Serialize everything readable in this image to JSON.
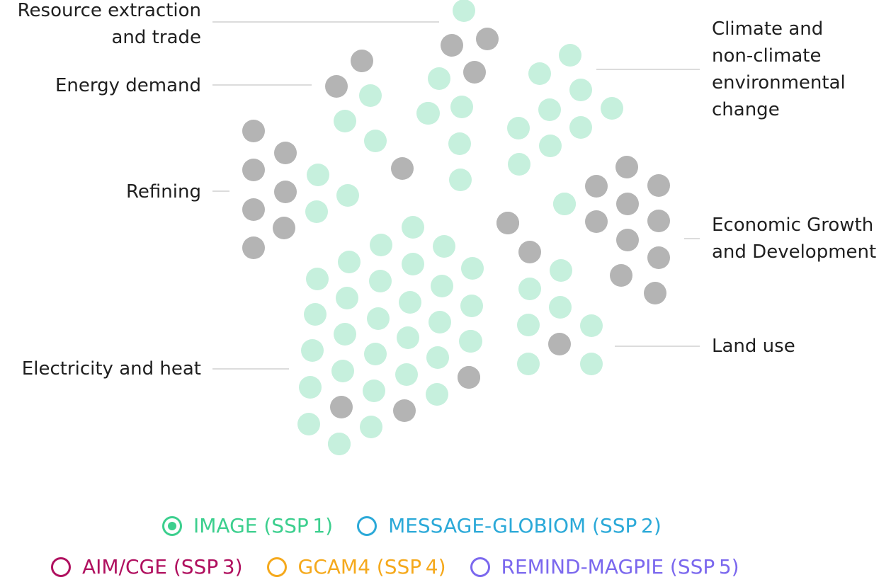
{
  "colors": {
    "active": "#c6f0dd",
    "inactive": "#b4b4b4",
    "connector": "#dcdcdc"
  },
  "sectors": [
    {
      "key": "resource",
      "lines": [
        "Resource extraction",
        "and trade"
      ]
    },
    {
      "key": "energy",
      "lines": [
        "Energy demand"
      ]
    },
    {
      "key": "refining",
      "lines": [
        "Refining"
      ]
    },
    {
      "key": "electricity",
      "lines": [
        "Electricity and heat"
      ]
    },
    {
      "key": "climate",
      "lines": [
        "Climate and",
        "non-climate",
        "environmental",
        "change"
      ]
    },
    {
      "key": "economic",
      "lines": [
        "Economic Growth",
        "and Development"
      ]
    },
    {
      "key": "land",
      "lines": [
        "Land use"
      ]
    }
  ],
  "clusters": {
    "resource": [
      "a",
      "i",
      "i",
      "a",
      "i",
      "a",
      "a",
      "a",
      "a",
      "a"
    ],
    "energy": [
      "i",
      "i",
      "a",
      "a",
      "a",
      "i"
    ],
    "refining": [
      "i",
      "i",
      "i",
      "i",
      "i",
      "i",
      "i",
      "a",
      "a",
      "a"
    ],
    "electricity": [
      "a",
      "a",
      "a",
      "a",
      "a",
      "a",
      "a",
      "a",
      "a",
      "a",
      "a",
      "a",
      "a",
      "a",
      "a",
      "a",
      "a",
      "a",
      "a",
      "a",
      "a",
      "a",
      "a",
      "a",
      "a",
      "a",
      "a",
      "a",
      "i",
      "a",
      "i",
      "i",
      "a",
      "i",
      "a"
    ],
    "climate": [
      "a",
      "a",
      "a",
      "a",
      "a",
      "a",
      "a",
      "a",
      "a",
      "a"
    ],
    "economic": [
      "a",
      "i",
      "i",
      "i",
      "i",
      "i",
      "i",
      "i",
      "i",
      "i",
      "i",
      "i"
    ],
    "land": [
      "i",
      "i",
      "a",
      "a",
      "a",
      "a",
      "i",
      "a",
      "a",
      "a"
    ]
  },
  "legend": [
    {
      "label": "IMAGE (SSP 1)",
      "color": "#3ccf8e",
      "selected": true
    },
    {
      "label": "MESSAGE-GLOBIOM (SSP 2)",
      "color": "#2ba9d8",
      "selected": false
    },
    {
      "label": "AIM/CGE (SSP 3)",
      "color": "#b0105f",
      "selected": false
    },
    {
      "label": "GCAM4 (SSP 4)",
      "color": "#f5a91c",
      "selected": false
    },
    {
      "label": "REMIND-MAGPIE (SSP 5)",
      "color": "#7b68ee",
      "selected": false
    }
  ]
}
